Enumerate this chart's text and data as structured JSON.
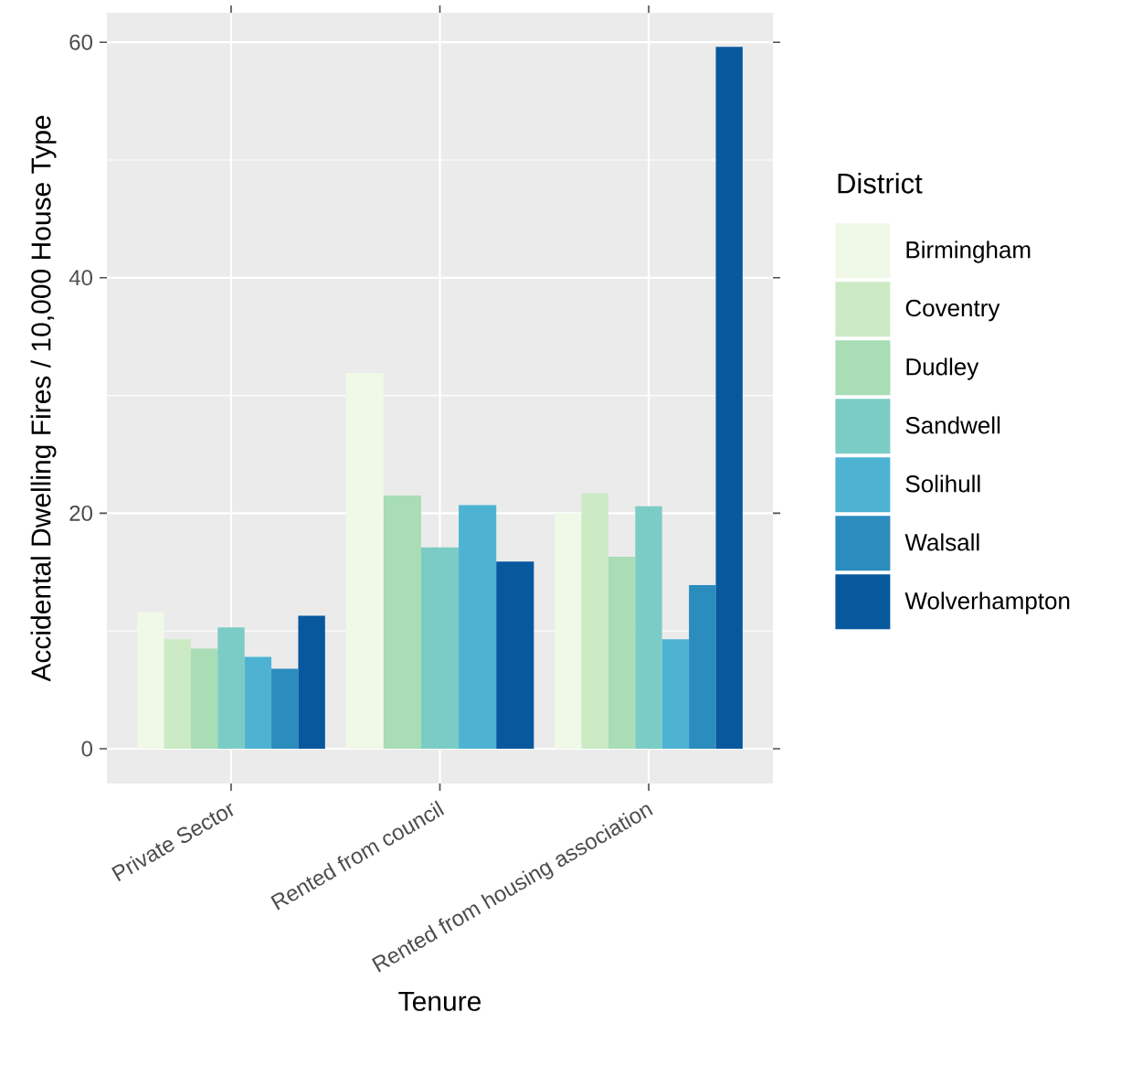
{
  "chart_data": {
    "type": "bar",
    "xlabel": "Tenure",
    "ylabel": "Accidental Dwelling Fires / 10,000 House Type",
    "legend_title": "District",
    "categories": [
      "Private Sector",
      "Rented from council",
      "Rented from housing association"
    ],
    "series": [
      {
        "name": "Birmingham",
        "color": "#f0f9e8",
        "values": [
          11.6,
          31.9,
          20.0
        ]
      },
      {
        "name": "Coventry",
        "color": "#ccebc5",
        "values": [
          9.3,
          null,
          21.7
        ]
      },
      {
        "name": "Dudley",
        "color": "#a8ddb5",
        "values": [
          8.5,
          21.5,
          16.3
        ]
      },
      {
        "name": "Sandwell",
        "color": "#7bccc4",
        "values": [
          10.3,
          17.1,
          20.6
        ]
      },
      {
        "name": "Solihull",
        "color": "#4eb3d3",
        "values": [
          7.8,
          20.7,
          9.3
        ]
      },
      {
        "name": "Walsall",
        "color": "#2b8cbe",
        "values": [
          6.8,
          null,
          13.9
        ]
      },
      {
        "name": "Wolverhampton",
        "color": "#08589e",
        "values": [
          11.3,
          15.9,
          59.6
        ]
      }
    ],
    "ylim": [
      -2.95,
      62.5
    ],
    "yticks": [
      0,
      20,
      40,
      60
    ],
    "grid": true,
    "legend": "right"
  }
}
